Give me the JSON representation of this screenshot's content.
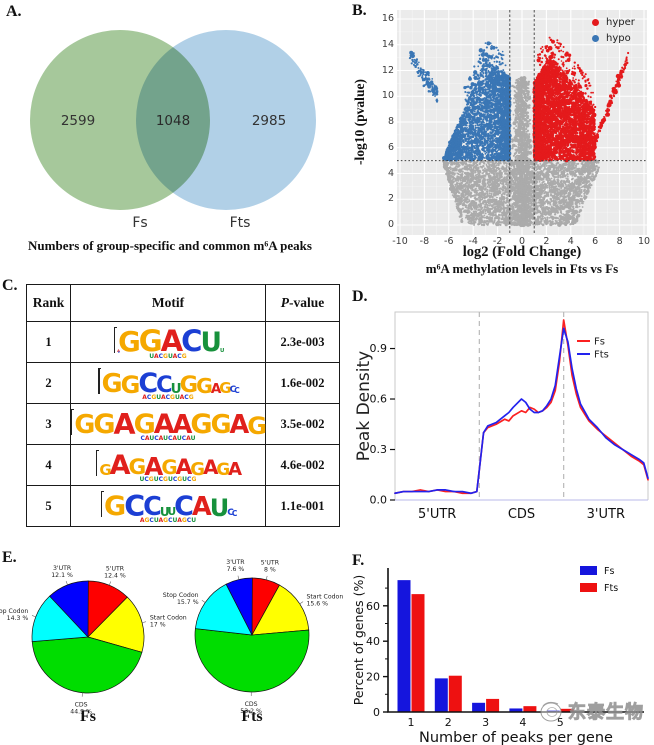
{
  "watermark": {
    "text": "东泰生物",
    "logo": "sketch-circles-logo"
  },
  "panels": {
    "a": {
      "label": "A."
    },
    "b": {
      "label": "B."
    },
    "c": {
      "label": "C."
    },
    "d": {
      "label": "D."
    },
    "e": {
      "label": "E."
    },
    "f": {
      "label": "F."
    }
  },
  "chart_data": [
    {
      "id": "A",
      "type": "venn",
      "title": "Numbers of group-specific and common m⁶A peaks",
      "sets": [
        {
          "label": "Fs",
          "only_value": "2599",
          "color": "#a6c89b"
        },
        {
          "label": "Fts",
          "only_value": "2985",
          "color": "#b1d0e7"
        }
      ],
      "overlap_value": "1048"
    },
    {
      "id": "B",
      "type": "scatter",
      "subtype": "volcano",
      "xlabel": "log2 (Fold Change)",
      "ylabel": "-log10 (pvalue)",
      "caption": "m⁶A methylation levels in Fts vs Fs",
      "xlim": [
        -10,
        10
      ],
      "ylim": [
        0,
        16
      ],
      "xticks": [
        -10,
        -8,
        -6,
        -4,
        -2,
        0,
        2,
        4,
        6,
        8,
        10
      ],
      "yticks": [
        0,
        2,
        4,
        6,
        8,
        10,
        12,
        14,
        16
      ],
      "legend": [
        {
          "label": "hyper",
          "color": "#e41a1c"
        },
        {
          "label": "hypo",
          "color": "#3a76b5"
        }
      ],
      "ns_color": "#ababab",
      "panel_bg": "#ebebeb",
      "grid_color": "#ffffff",
      "thresholds": {
        "hline_neg_log10_p": 5,
        "vlines_log2fc": [
          -1,
          1
        ]
      },
      "summary": "hyper-methylated peaks (log2FC>1, -log10 p>5) red on right, hypo-methylated (log2FC<-1) blue on left, non-significant gray"
    },
    {
      "id": "C",
      "type": "table",
      "headers": [
        "Rank",
        "Motif",
        "P-value"
      ],
      "rows": [
        {
          "rank": "1",
          "motif_consensus": "GGACU",
          "pvalue": "2.3e-003"
        },
        {
          "rank": "2",
          "motif_consensus": "GGCCUGGAG",
          "pvalue": "1.6e-002"
        },
        {
          "rank": "3",
          "motif_consensus": "GGAGAAGGAG",
          "pvalue": "3.5e-002"
        },
        {
          "rank": "4",
          "motif_consensus": "GAGAGAGAGA",
          "pvalue": "4.6e-002"
        },
        {
          "rank": "5",
          "motif_consensus": "GCCUUCAU",
          "pvalue": "1.1e-001"
        }
      ]
    },
    {
      "id": "D",
      "type": "line",
      "ylabel": "Peak Density",
      "x_regions": [
        "5'UTR",
        "CDS",
        "3'UTR"
      ],
      "yticks": [
        "0.0",
        "0.3",
        "0.6",
        "0.9"
      ],
      "region_boundaries_x": [
        1,
        2
      ],
      "x": [
        0,
        0.1,
        0.2,
        0.3,
        0.4,
        0.5,
        0.6,
        0.7,
        0.8,
        0.9,
        0.97,
        1.0,
        1.05,
        1.1,
        1.2,
        1.3,
        1.35,
        1.4,
        1.5,
        1.55,
        1.6,
        1.65,
        1.7,
        1.75,
        1.8,
        1.85,
        1.9,
        1.95,
        2.0,
        2.05,
        2.1,
        2.15,
        2.2,
        2.3,
        2.4,
        2.5,
        2.6,
        2.7,
        2.8,
        2.9,
        2.95,
        3.0
      ],
      "series": [
        {
          "name": "Fs",
          "color": "#fb2020",
          "y": [
            0.04,
            0.05,
            0.05,
            0.06,
            0.05,
            0.06,
            0.05,
            0.05,
            0.04,
            0.04,
            0.05,
            0.18,
            0.4,
            0.43,
            0.45,
            0.48,
            0.47,
            0.5,
            0.53,
            0.52,
            0.55,
            0.54,
            0.52,
            0.53,
            0.55,
            0.58,
            0.65,
            0.82,
            1.07,
            0.92,
            0.74,
            0.63,
            0.55,
            0.47,
            0.42,
            0.38,
            0.34,
            0.3,
            0.26,
            0.23,
            0.21,
            0.12
          ]
        },
        {
          "name": "Fts",
          "color": "#2222ee",
          "y": [
            0.04,
            0.05,
            0.05,
            0.05,
            0.05,
            0.06,
            0.06,
            0.05,
            0.05,
            0.04,
            0.05,
            0.18,
            0.4,
            0.44,
            0.46,
            0.5,
            0.52,
            0.55,
            0.6,
            0.58,
            0.54,
            0.52,
            0.52,
            0.53,
            0.56,
            0.6,
            0.68,
            0.85,
            1.02,
            0.94,
            0.78,
            0.66,
            0.57,
            0.48,
            0.43,
            0.37,
            0.33,
            0.3,
            0.27,
            0.24,
            0.22,
            0.13
          ]
        }
      ]
    },
    {
      "id": "E",
      "type": "pie",
      "colors": {
        "5'UTR": "#fe0000",
        "Start Codon": "#ffff00",
        "CDS": "#00dd00",
        "Stop Codon": "#00ffff",
        "3'UTR": "#0000fe"
      },
      "charts": [
        {
          "name": "Fs",
          "slices": [
            {
              "label": "5'UTR",
              "value": 12.4,
              "text": "12.4 %"
            },
            {
              "label": "Start Codon",
              "value": 17,
              "text": "17 %"
            },
            {
              "label": "CDS",
              "value": 44.3,
              "text": "44.3 %"
            },
            {
              "label": "Stop Codon",
              "value": 14.3,
              "text": "14.3 %"
            },
            {
              "label": "3'UTR",
              "value": 12.1,
              "text": "12.1 %"
            }
          ]
        },
        {
          "name": "Fts",
          "slices": [
            {
              "label": "5'UTR",
              "value": 8,
              "text": "8 %"
            },
            {
              "label": "Start Codon",
              "value": 15.6,
              "text": "15.6 %"
            },
            {
              "label": "CDS",
              "value": 53.2,
              "text": "53.2 %"
            },
            {
              "label": "Stop Codon",
              "value": 15.7,
              "text": "15.7 %"
            },
            {
              "label": "3'UTR",
              "value": 7.6,
              "text": "7.6 %"
            }
          ]
        }
      ]
    },
    {
      "id": "F",
      "type": "bar",
      "xlabel": "Number of peaks per gene",
      "ylabel": "Percent of genes (%)",
      "categories": [
        "1",
        "2",
        "3",
        "4",
        "5"
      ],
      "yticks": [
        0,
        20,
        40,
        60
      ],
      "ylim": [
        0,
        80
      ],
      "series": [
        {
          "name": "Fs",
          "color": "#1515dd",
          "values": [
            74.5,
            19,
            5.2,
            2,
            0.9
          ]
        },
        {
          "name": "Fts",
          "color": "#ee1111",
          "values": [
            66.6,
            20.5,
            7.4,
            3.3,
            1.8
          ]
        }
      ]
    }
  ],
  "motif_logo": {
    "letter_colors": {
      "A": "#e0201c",
      "C": "#1c3fd4",
      "G": "#f5a800",
      "U": "#17913c"
    },
    "rows": [
      {
        "letters": [
          [
            "a",
            0.12
          ],
          [
            "c",
            0.1
          ],
          [
            "G",
            0.92
          ],
          [
            "G",
            0.97
          ],
          [
            "A",
            0.97
          ],
          [
            "C",
            0.97
          ],
          [
            "U",
            0.88
          ],
          [
            "u",
            0.18
          ]
        ],
        "sub": "uacguacg"
      },
      {
        "letters": [
          [
            "G",
            0.85
          ],
          [
            "G",
            0.8
          ],
          [
            "C",
            0.9
          ],
          [
            "C",
            0.75
          ],
          [
            "u",
            0.45
          ],
          [
            "G",
            0.75
          ],
          [
            "G",
            0.68
          ],
          [
            "A",
            0.45
          ],
          [
            "G",
            0.5
          ],
          [
            "c",
            0.3
          ],
          [
            "c",
            0.25
          ]
        ],
        "sub": "acguacguacg"
      },
      {
        "letters": [
          [
            "G",
            0.85
          ],
          [
            "G",
            0.9
          ],
          [
            "A",
            0.95
          ],
          [
            "G",
            0.9
          ],
          [
            "A",
            0.9
          ],
          [
            "A",
            0.85
          ],
          [
            "G",
            0.9
          ],
          [
            "G",
            0.85
          ],
          [
            "A",
            0.85
          ],
          [
            "G",
            0.8
          ]
        ],
        "sub": "caucaucaucau"
      },
      {
        "letters": [
          [
            "G",
            0.5
          ],
          [
            "A",
            0.9
          ],
          [
            "G",
            0.72
          ],
          [
            "A",
            0.82
          ],
          [
            "G",
            0.66
          ],
          [
            "A",
            0.72
          ],
          [
            "G",
            0.6
          ],
          [
            "A",
            0.66
          ],
          [
            "G",
            0.56
          ],
          [
            "A",
            0.6
          ]
        ],
        "sub": "ucgucgucgucg"
      },
      {
        "letters": [
          [
            "G",
            0.9
          ],
          [
            "C",
            0.95
          ],
          [
            "C",
            0.85
          ],
          [
            "u",
            0.4
          ],
          [
            "u",
            0.35
          ],
          [
            "C",
            0.9
          ],
          [
            "A",
            0.85
          ],
          [
            "U",
            0.8
          ],
          [
            "c",
            0.3
          ],
          [
            "c",
            0.25
          ]
        ],
        "sub": "agcuagcuagcu"
      }
    ]
  }
}
